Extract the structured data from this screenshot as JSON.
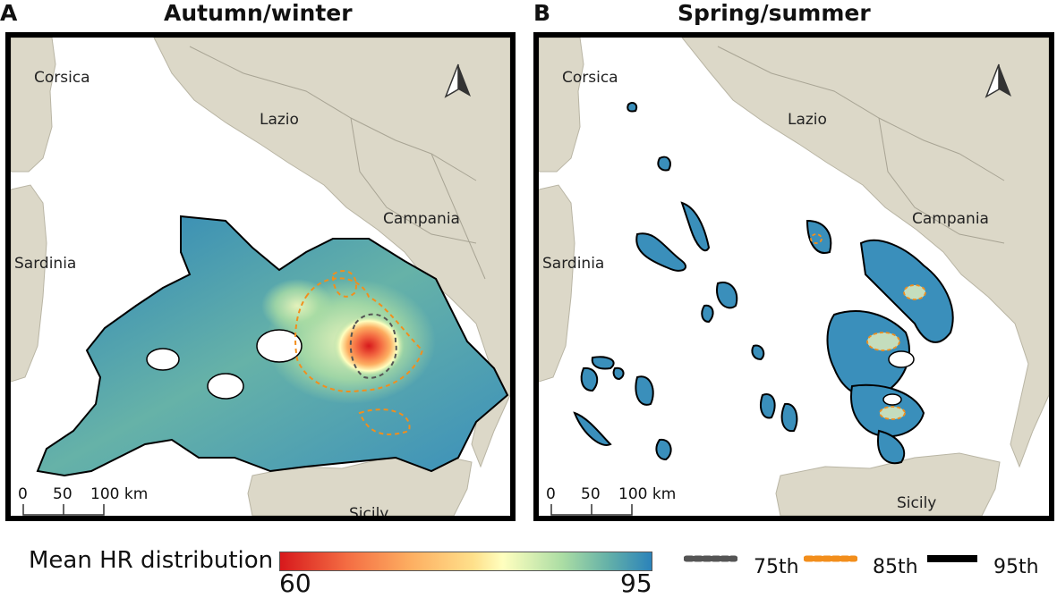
{
  "panels": [
    {
      "letter": "A",
      "title": "Autumn/winter"
    },
    {
      "letter": "B",
      "title": "Spring/summer"
    }
  ],
  "map_labels": {
    "corsica": "Corsica",
    "lazio": "Lazio",
    "campania": "Campania",
    "sardinia": "Sardinia",
    "sicily": "Sicily"
  },
  "scale_bar": {
    "ticks": [
      "0",
      "50",
      "100 km"
    ]
  },
  "legend": {
    "title": "Mean HR distribution",
    "min": "60",
    "max": "95",
    "colors": [
      "#d7191c",
      "#fdae61",
      "#ffffbf",
      "#abdda4",
      "#2b83ba"
    ],
    "percentiles": [
      {
        "label": "75th",
        "style": "dotted",
        "color": "#555555"
      },
      {
        "label": "85th",
        "style": "dotted",
        "color": "#f28e1c"
      },
      {
        "label": "95th",
        "style": "solid",
        "color": "#000000"
      }
    ]
  },
  "icons": [
    "north-arrow-icon"
  ]
}
